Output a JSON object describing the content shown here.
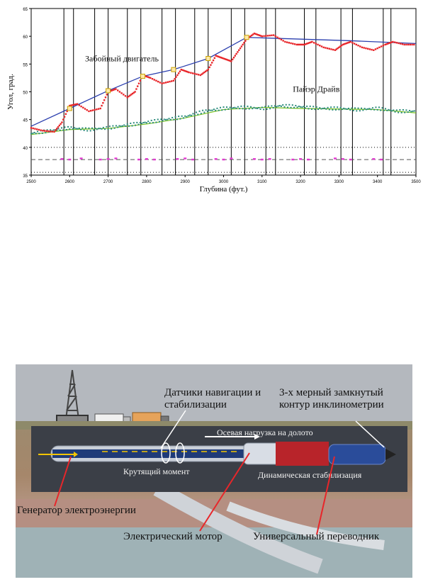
{
  "chart_data": {
    "type": "scatter",
    "title": "",
    "xlabel": "Глубина (фут.)",
    "ylabel": "Угол, град.",
    "xlim": [
      2500,
      3500
    ],
    "ylim": [
      35,
      65
    ],
    "xticks": [
      "2500",
      "2600",
      "2700",
      "2800",
      "2900",
      "3000",
      "3100",
      "3200",
      "3300",
      "3400",
      "3500"
    ],
    "yticks": [
      "35",
      "40",
      "45",
      "50",
      "55",
      "60",
      "65"
    ],
    "annotations": [
      "Забойный двигатель",
      "Пайэр Драйв"
    ],
    "vertical_markers": [
      2585,
      2610,
      2665,
      2700,
      2750,
      2785,
      2840,
      2875,
      2925,
      2960,
      3020,
      3055,
      3110,
      3135,
      3210,
      3240,
      3305,
      3335,
      3415,
      3435
    ],
    "reference_lines_dotted": [
      40,
      35.5
    ],
    "reference_lines_dashed": [
      37.8
    ],
    "series": [
      {
        "color": "#e8262a",
        "x": [
          2500,
          2530,
          2560,
          2580,
          2600,
          2620,
          2650,
          2680,
          2700,
          2720,
          2750,
          2770,
          2790,
          2810,
          2840,
          2870,
          2890,
          2910,
          2940,
          2960,
          2980,
          3000,
          3020,
          3040,
          3060,
          3080,
          3100,
          3130,
          3160,
          3190,
          3210,
          3230,
          3260,
          3290,
          3310,
          3330,
          3360,
          3390,
          3420,
          3440,
          3470,
          3500
        ],
        "values": [
          43.5,
          43.0,
          42.8,
          44.5,
          47.5,
          47.8,
          46.5,
          47.0,
          50.0,
          50.5,
          49.0,
          50.0,
          53.0,
          52.5,
          51.5,
          52.0,
          54.0,
          53.5,
          53.0,
          54.0,
          56.5,
          56.0,
          55.5,
          57.5,
          59.5,
          60.5,
          60.0,
          60.2,
          59.0,
          58.5,
          58.5,
          59.0,
          58.0,
          57.5,
          58.5,
          59.0,
          58.0,
          57.5,
          58.5,
          59.0,
          58.5,
          58.5
        ]
      },
      {
        "color": "#2a8a7a",
        "x": [
          2500,
          2550,
          2600,
          2650,
          2700,
          2750,
          2800,
          2850,
          2900,
          2950,
          3000,
          3050,
          3100,
          3150,
          3200,
          3250,
          3300,
          3350,
          3400,
          3450,
          3500
        ],
        "values": [
          42.5,
          43.0,
          43.5,
          43.2,
          43.5,
          44.0,
          44.5,
          45.0,
          45.5,
          46.5,
          47.0,
          47.2,
          47.0,
          47.5,
          47.3,
          47.0,
          47.0,
          46.8,
          47.0,
          46.5,
          46.5
        ]
      },
      {
        "color": "#2b3fae",
        "x": [
          2500,
          2600,
          2700,
          2790,
          2870,
          2960,
          3060,
          3330,
          3500
        ],
        "values": [
          43.8,
          47.0,
          50.2,
          52.8,
          54.0,
          56.0,
          59.8,
          59.2,
          58.7
        ]
      },
      {
        "color": "#79c21f",
        "x": [
          2500,
          2600,
          2700,
          2800,
          2900,
          3000,
          3100,
          3200,
          3300,
          3400,
          3500
        ],
        "values": [
          42.3,
          43.2,
          43.4,
          44.2,
          45.3,
          46.8,
          47.2,
          47.0,
          46.9,
          46.8,
          46.2
        ]
      },
      {
        "color": "#e23ad0",
        "x": [
          2580,
          2600,
          2630,
          2680,
          2700,
          2720,
          2780,
          2800,
          2820,
          2880,
          2900,
          2920,
          2980,
          3000,
          3020,
          3080,
          3100,
          3120,
          3180,
          3200,
          3220,
          3290,
          3310,
          3330,
          3390,
          3410
        ],
        "values": [
          37.9,
          37.8,
          38.0,
          37.8,
          37.9,
          38.0,
          37.8,
          37.9,
          37.8,
          37.9,
          38.0,
          37.8,
          37.9,
          37.8,
          38.0,
          37.9,
          37.8,
          37.9,
          37.8,
          37.9,
          37.8,
          38.0,
          37.9,
          37.8,
          37.9,
          37.8
        ]
      }
    ],
    "square_markers": {
      "x": [
        2600,
        2700,
        2790,
        2870,
        2960,
        3060
      ],
      "values": [
        47.0,
        50.2,
        52.8,
        54.0,
        56.0,
        59.8
      ]
    }
  },
  "diagram": {
    "labels": {
      "sensors": "Датчики навигации и стабилизации",
      "inclinometer": "3-х мерный замкнутый контур инклинометрии",
      "axial_load": "Осевая нагрузка на долото",
      "torque": "Крутящий момент",
      "dynamic_stab": "Динамическая стабилизация",
      "generator": "Генератор электроэнергии",
      "motor": "Электрический мотор",
      "sub": "Универсальный переводник"
    }
  }
}
